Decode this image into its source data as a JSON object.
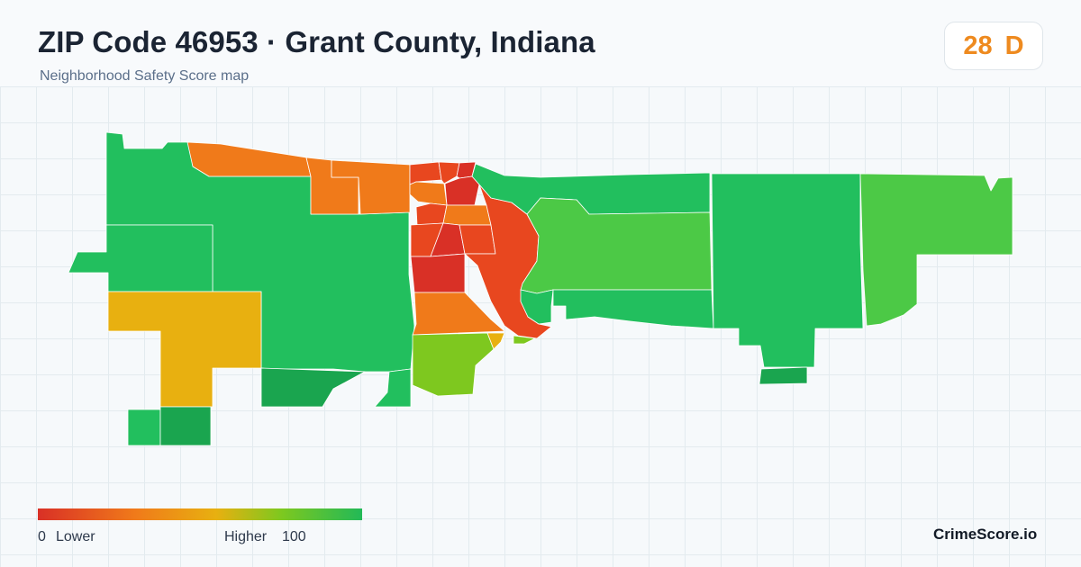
{
  "header": {
    "title": "ZIP Code 46953 · Grant County, Indiana",
    "subtitle": "Neighborhood Safety Score map"
  },
  "score": {
    "value": "28",
    "grade": "D",
    "color": "#ee8a1f"
  },
  "map": {
    "score_scale": {
      "min": 0,
      "max": 100,
      "colors": [
        "#d93026",
        "#f07a1a",
        "#e8b010",
        "#7ec81f",
        "#22b957"
      ]
    },
    "region_colors": {
      "very_low": "#d93026",
      "low": "#e8471f",
      "below_avg": "#f07a1a",
      "average": "#e8b010",
      "above_avg": "#7ec81f",
      "high": "#4cc946",
      "very_high": "#22bf5e",
      "top": "#1aa54f"
    }
  },
  "legend": {
    "low_value": "0",
    "low_label": "Lower",
    "high_label": "Higher",
    "high_value": "100"
  },
  "brand": "CrimeScore.io"
}
